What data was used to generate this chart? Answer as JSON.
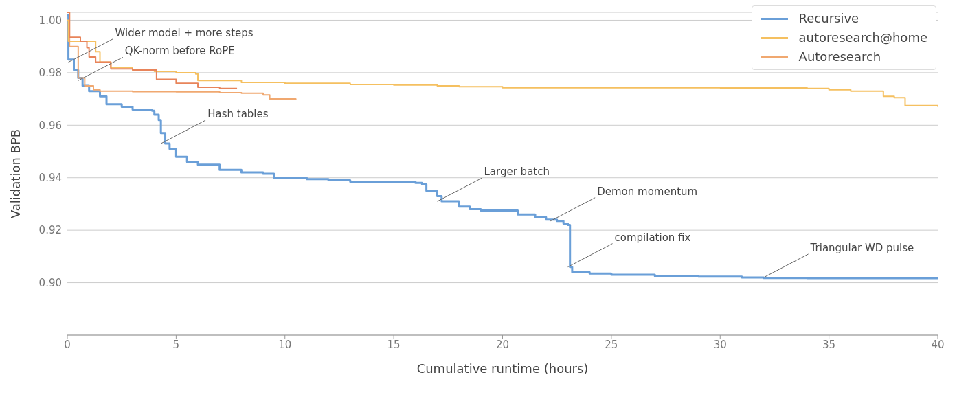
{
  "chart_data": {
    "type": "step",
    "xlabel": "Cumulative runtime (hours)",
    "ylabel": "Validation BPB",
    "xlim": [
      0,
      40
    ],
    "xticks": [
      0,
      5,
      10,
      15,
      20,
      25,
      30,
      35,
      40
    ],
    "ylim": [
      0.88,
      1.003
    ],
    "yticks": [
      {
        "value": 0.9,
        "label": "0.90"
      },
      {
        "value": 0.92,
        "label": "0.92"
      },
      {
        "value": 0.94,
        "label": "0.94"
      },
      {
        "value": 0.96,
        "label": "0.96"
      },
      {
        "value": 0.98,
        "label": "0.98"
      },
      {
        "value": 1.0,
        "label": "1.00"
      }
    ],
    "grid": "y",
    "legend": "top right",
    "marker": "none",
    "line_style": "solid",
    "series": [
      {
        "name": "Recursive",
        "color": "#6a9fd8",
        "x": [
          0,
          0.05,
          0.3,
          0.5,
          0.7,
          1,
          1.5,
          1.8,
          2.5,
          3,
          3.9,
          4,
          4.2,
          4.3,
          4.5,
          4.7,
          5,
          5.5,
          6,
          7,
          8,
          9,
          9.5,
          11,
          12,
          13,
          16,
          16.3,
          16.5,
          17,
          17.2,
          18,
          18.5,
          19,
          20.3,
          20.7,
          21.5,
          22,
          22.5,
          22.8,
          23,
          23.1,
          23.2,
          24,
          25,
          27,
          29,
          31,
          32,
          34,
          40
        ],
        "values": [
          1.002,
          0.985,
          0.981,
          0.978,
          0.975,
          0.973,
          0.971,
          0.968,
          0.967,
          0.966,
          0.9655,
          0.964,
          0.962,
          0.957,
          0.953,
          0.951,
          0.948,
          0.946,
          0.945,
          0.943,
          0.942,
          0.9415,
          0.94,
          0.9395,
          0.939,
          0.9385,
          0.938,
          0.9375,
          0.935,
          0.933,
          0.931,
          0.929,
          0.928,
          0.9275,
          0.9275,
          0.926,
          0.925,
          0.924,
          0.9235,
          0.9225,
          0.922,
          0.906,
          0.904,
          0.9035,
          0.903,
          0.9025,
          0.9023,
          0.902,
          0.9018,
          0.9017,
          0.9017
        ]
      },
      {
        "name": "autoresearch@home",
        "color": "#f5c060",
        "x": [
          0,
          0.05,
          1.2,
          1.3,
          1.5,
          2,
          3,
          4,
          5,
          5.9,
          6,
          8,
          10,
          13,
          15,
          17,
          18,
          20,
          25,
          30,
          34,
          35,
          36,
          37,
          37.5,
          38,
          38.5,
          40
        ],
        "values": [
          1.0,
          0.992,
          0.992,
          0.988,
          0.984,
          0.982,
          0.981,
          0.9805,
          0.98,
          0.9795,
          0.977,
          0.9763,
          0.976,
          0.9755,
          0.9753,
          0.975,
          0.9747,
          0.9743,
          0.9743,
          0.9742,
          0.974,
          0.9735,
          0.973,
          0.973,
          0.971,
          0.9705,
          0.9675,
          0.967
        ]
      },
      {
        "name": "Autoresearch",
        "color": "#f0a870",
        "x": [
          0,
          0.1,
          0.5,
          0.8,
          1.2,
          1.5,
          3,
          5,
          7,
          8,
          9,
          9.3,
          10.5
        ],
        "values": [
          1.003,
          0.99,
          0.978,
          0.975,
          0.9735,
          0.973,
          0.9728,
          0.9727,
          0.9724,
          0.9722,
          0.9715,
          0.97,
          0.9697
        ]
      },
      {
        "color": "#e8845a",
        "x": [
          0,
          0.1,
          0.5,
          0.6,
          0.9,
          1.0,
          1.3,
          2,
          3,
          4,
          4.1,
          5,
          6,
          7,
          7.8
        ],
        "values": [
          1.003,
          0.9935,
          0.9935,
          0.992,
          0.9895,
          0.986,
          0.984,
          0.9815,
          0.981,
          0.981,
          0.9775,
          0.976,
          0.9745,
          0.974,
          0.974
        ]
      }
    ],
    "annotations": [
      {
        "text": "Wider model + more steps",
        "x": 0.05,
        "y": 0.984
      },
      {
        "text": "QK-norm before RoPE",
        "x": 0.5,
        "y": 0.977
      },
      {
        "text": "Hash tables",
        "x": 4.3,
        "y": 0.953
      },
      {
        "text": "Larger batch",
        "x": 17,
        "y": 0.931
      },
      {
        "text": "Demon momentum",
        "x": 22.2,
        "y": 0.9235
      },
      {
        "text": "compilation fix",
        "x": 23.0,
        "y": 0.906
      },
      {
        "text": "Triangular WD pulse",
        "x": 32,
        "y": 0.902
      }
    ]
  }
}
